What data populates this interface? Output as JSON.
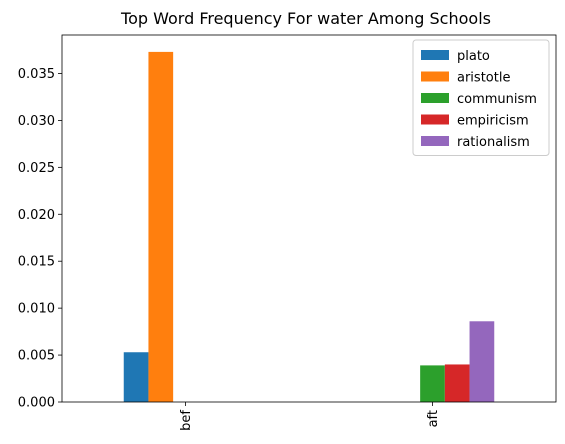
{
  "chart_data": {
    "type": "bar",
    "title": "Top Word Frequency For water Among Schools",
    "xlabel": "",
    "ylabel": "",
    "categories": [
      "bef",
      "aft"
    ],
    "series": [
      {
        "name": "plato",
        "color": "#1f77b4",
        "values": [
          0.0053,
          0
        ]
      },
      {
        "name": "aristotle",
        "color": "#ff7f0e",
        "values": [
          0.0373,
          0
        ]
      },
      {
        "name": "communism",
        "color": "#2ca02c",
        "values": [
          0,
          0.0039
        ]
      },
      {
        "name": "empiricism",
        "color": "#d62728",
        "values": [
          0,
          0.004
        ]
      },
      {
        "name": "rationalism",
        "color": "#9467bd",
        "values": [
          0,
          0.0086
        ]
      }
    ],
    "ylim": [
      0,
      0.0391
    ],
    "yticks": [
      0.0,
      0.005,
      0.01,
      0.015,
      0.02,
      0.025,
      0.03,
      0.035
    ],
    "ytick_labels": [
      "0.000",
      "0.005",
      "0.010",
      "0.015",
      "0.020",
      "0.025",
      "0.030",
      "0.035"
    ],
    "legend_position": "top-right",
    "grid": false
  }
}
